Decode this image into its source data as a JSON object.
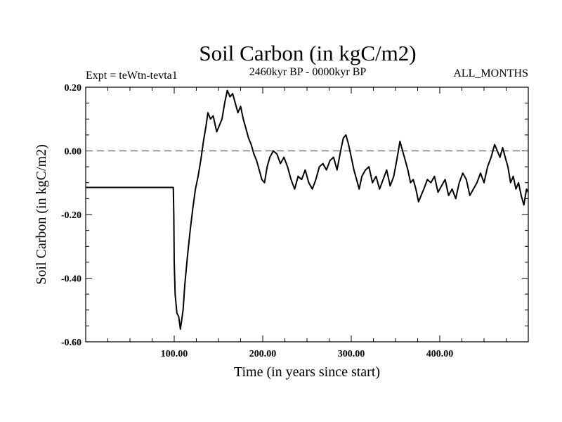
{
  "chart_data": {
    "type": "line",
    "title": "Soil Carbon (in kgC/m2)",
    "subtitle": "2460kyr BP - 0000kyr BP",
    "left_annotation": "Expt = teWtn-tevta1",
    "right_annotation": "ALL_MONTHS",
    "xlabel": "Time (in years since start)",
    "ylabel": "Soil Carbon (in kgC/m2)",
    "xlim": [
      0,
      500
    ],
    "ylim": [
      -0.6,
      0.2
    ],
    "x_ticks": [
      {
        "value": 100,
        "label": "100.00"
      },
      {
        "value": 200,
        "label": "200.00"
      },
      {
        "value": 300,
        "label": "300.00"
      },
      {
        "value": 400,
        "label": "400.00"
      }
    ],
    "y_ticks": [
      {
        "value": 0.2,
        "label": "0.20"
      },
      {
        "value": 0.0,
        "label": "0.00"
      },
      {
        "value": -0.2,
        "label": "-0.20"
      },
      {
        "value": -0.4,
        "label": "-0.40"
      },
      {
        "value": -0.6,
        "label": "-0.60"
      }
    ],
    "reference_line": {
      "y": 0.0,
      "style": "dashed"
    },
    "series": [
      {
        "name": "Soil Carbon",
        "color": "#000000",
        "x": [
          0,
          99,
          99.5,
          100,
          101,
          103,
          105,
          107,
          108,
          110,
          112,
          115,
          118,
          121,
          124,
          127,
          130,
          133,
          136,
          138,
          141,
          144,
          148,
          151,
          154,
          157,
          160,
          163,
          166,
          169,
          172,
          175,
          178,
          181,
          184,
          187,
          190,
          193,
          196,
          199,
          202,
          205,
          208,
          212,
          216,
          220,
          224,
          228,
          232,
          236,
          240,
          244,
          248,
          252,
          256,
          260,
          264,
          268,
          272,
          276,
          280,
          284,
          288,
          291,
          294,
          297,
          300,
          303,
          306,
          309,
          312,
          316,
          320,
          324,
          328,
          332,
          336,
          340,
          344,
          348,
          352,
          355,
          358,
          361,
          364,
          367,
          370,
          373,
          376,
          379,
          382,
          386,
          390,
          394,
          398,
          402,
          406,
          410,
          414,
          418,
          422,
          426,
          430,
          434,
          438,
          442,
          446,
          450,
          454,
          458,
          462,
          465,
          468,
          471,
          474,
          477,
          480,
          483,
          486,
          489,
          492,
          495,
          498,
          500
        ],
        "y": [
          -0.115,
          -0.115,
          -0.2,
          -0.35,
          -0.45,
          -0.51,
          -0.52,
          -0.56,
          -0.54,
          -0.5,
          -0.42,
          -0.33,
          -0.25,
          -0.18,
          -0.12,
          -0.08,
          -0.03,
          0.03,
          0.08,
          0.12,
          0.1,
          0.11,
          0.06,
          0.08,
          0.1,
          0.15,
          0.19,
          0.17,
          0.18,
          0.15,
          0.12,
          0.14,
          0.1,
          0.07,
          0.04,
          0.02,
          -0.01,
          -0.03,
          -0.06,
          -0.09,
          -0.1,
          -0.05,
          -0.02,
          0.0,
          -0.01,
          -0.04,
          -0.02,
          -0.05,
          -0.09,
          -0.12,
          -0.08,
          -0.09,
          -0.06,
          -0.1,
          -0.12,
          -0.09,
          -0.05,
          -0.04,
          -0.06,
          -0.03,
          -0.02,
          -0.06,
          0.0,
          0.04,
          0.05,
          0.02,
          -0.02,
          -0.06,
          -0.09,
          -0.12,
          -0.08,
          -0.06,
          -0.05,
          -0.1,
          -0.08,
          -0.12,
          -0.09,
          -0.06,
          -0.11,
          -0.08,
          -0.02,
          0.03,
          0.0,
          -0.03,
          -0.06,
          -0.1,
          -0.09,
          -0.12,
          -0.16,
          -0.14,
          -0.12,
          -0.09,
          -0.1,
          -0.08,
          -0.13,
          -0.11,
          -0.09,
          -0.14,
          -0.12,
          -0.15,
          -0.1,
          -0.07,
          -0.09,
          -0.14,
          -0.12,
          -0.1,
          -0.07,
          -0.1,
          -0.05,
          -0.02,
          0.02,
          0.0,
          -0.02,
          0.01,
          -0.02,
          -0.05,
          -0.1,
          -0.08,
          -0.12,
          -0.1,
          -0.14,
          -0.17,
          -0.12,
          -0.13
        ]
      }
    ]
  }
}
